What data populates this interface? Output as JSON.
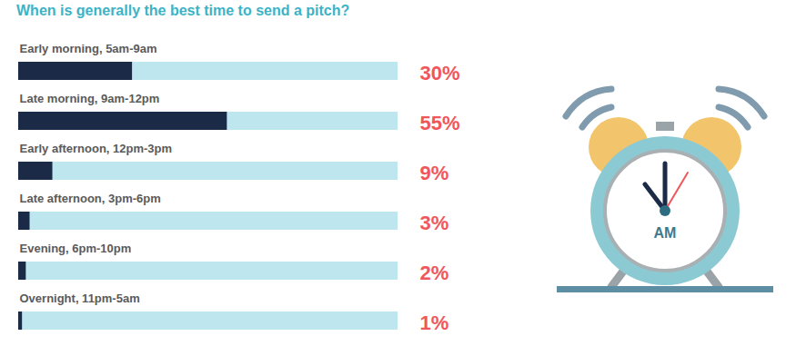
{
  "chart_data": {
    "type": "bar",
    "orientation": "horizontal",
    "title": "When is generally the best time to send a pitch?",
    "categories": [
      "Early morning, 5am-9am",
      "Late morning, 9am-12pm",
      "Early afternoon, 12pm-3pm",
      "Late afternoon, 3pm-6pm",
      "Evening, 6pm-10pm",
      "Overnight, 11pm-5am"
    ],
    "values": [
      30,
      55,
      9,
      3,
      2,
      1
    ],
    "value_labels": [
      "30%",
      "55%",
      "9%",
      "3%",
      "2%",
      "1%"
    ],
    "data_labels": true,
    "color": "#1b2a47",
    "xlim": [
      0,
      100
    ],
    "tick_labels": false,
    "grid": false,
    "clock_label": "AM"
  }
}
